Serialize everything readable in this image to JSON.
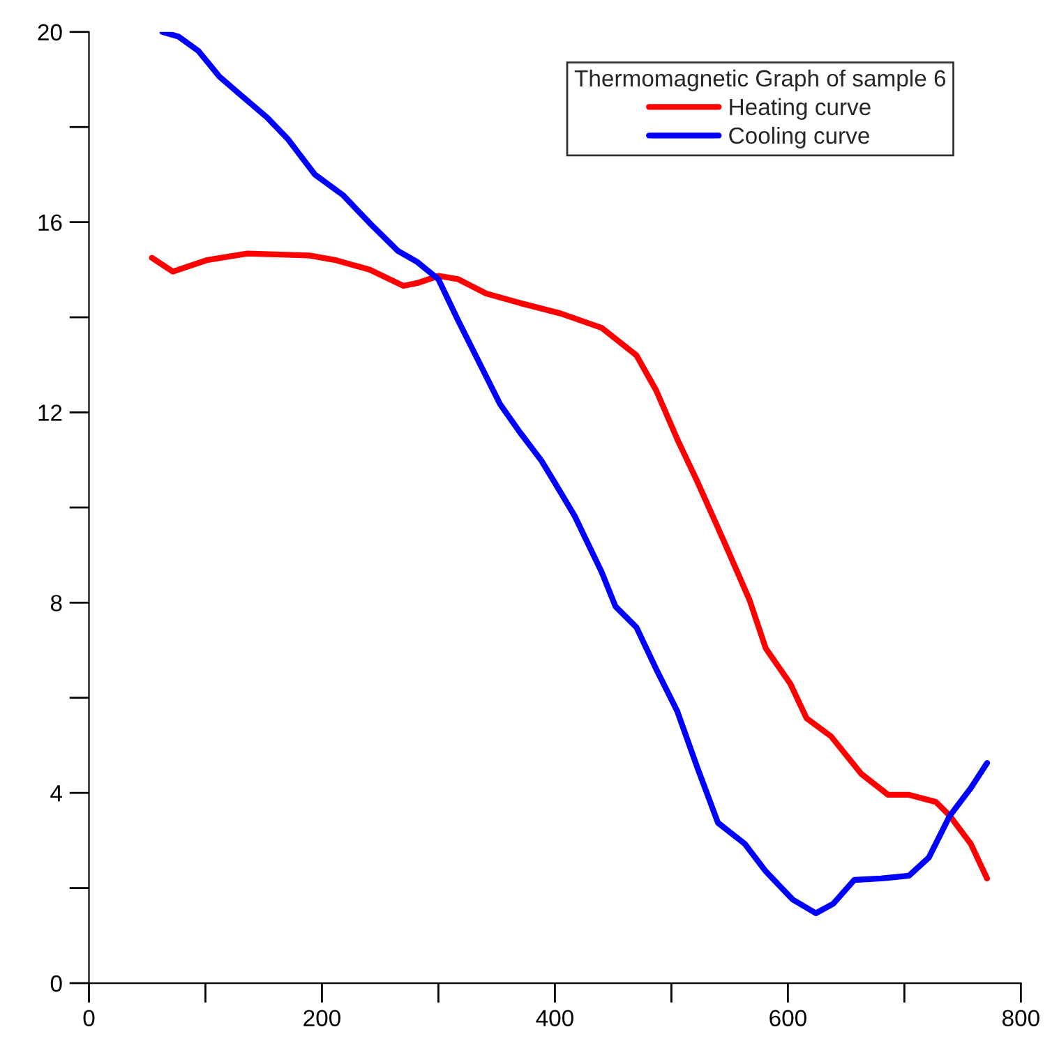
{
  "chart_data": {
    "type": "line",
    "legend_title": "Thermomagnetic Graph of sample 6",
    "legend": "top right",
    "grid": false,
    "marker": "none",
    "line_style": "solid",
    "xlim": [
      0,
      800
    ],
    "ylim": [
      0,
      20
    ],
    "xticks": [
      0,
      {
        "value": 100,
        "label": null
      },
      200,
      {
        "value": 300,
        "label": null
      },
      400,
      {
        "value": 500,
        "label": null
      },
      600,
      {
        "value": 700,
        "label": null
      },
      800
    ],
    "yticks": [
      0,
      {
        "value": 2,
        "label": null
      },
      4,
      {
        "value": 6,
        "label": null
      },
      8,
      {
        "value": 10,
        "label": null
      },
      12,
      {
        "value": 14,
        "label": null
      },
      16,
      {
        "value": 18,
        "label": null
      },
      20
    ],
    "series": [
      {
        "name": "Heating curve",
        "color": "#ff0000",
        "x": [
          54,
          72,
          101,
          136,
          189,
          212,
          241,
          270,
          282,
          300,
          317,
          341,
          370,
          405,
          440,
          470,
          487,
          505,
          522,
          546,
          567,
          581,
          602,
          616,
          637,
          663,
          686,
          704,
          727,
          739,
          757,
          771
        ],
        "values": [
          15.25,
          14.96,
          15.2,
          15.34,
          15.3,
          15.2,
          15.0,
          14.66,
          14.72,
          14.87,
          14.8,
          14.5,
          14.3,
          14.08,
          13.78,
          13.2,
          12.46,
          11.44,
          10.56,
          9.24,
          8.06,
          7.04,
          6.3,
          5.57,
          5.19,
          4.4,
          3.96,
          3.96,
          3.81,
          3.52,
          2.93,
          2.2
        ]
      },
      {
        "name": "Cooling curve",
        "color": "#0000ff",
        "x": [
          63,
          77,
          94,
          112,
          130,
          153,
          171,
          194,
          218,
          241,
          265,
          282,
          300,
          317,
          335,
          353,
          370,
          388,
          399,
          417,
          440,
          452,
          470,
          487,
          505,
          522,
          540,
          563,
          581,
          604,
          624,
          639,
          657,
          680,
          704,
          721,
          739,
          757,
          771
        ],
        "values": [
          20,
          19.9,
          19.6,
          19.06,
          18.68,
          18.2,
          17.74,
          17.0,
          16.57,
          15.98,
          15.4,
          15.16,
          14.8,
          13.93,
          13.05,
          12.17,
          11.58,
          11.0,
          10.56,
          9.82,
          8.65,
          7.92,
          7.48,
          6.6,
          5.72,
          4.55,
          3.37,
          2.93,
          2.35,
          1.76,
          1.47,
          1.67,
          2.17,
          2.2,
          2.26,
          2.64,
          3.52,
          4.1,
          4.63
        ]
      }
    ]
  }
}
